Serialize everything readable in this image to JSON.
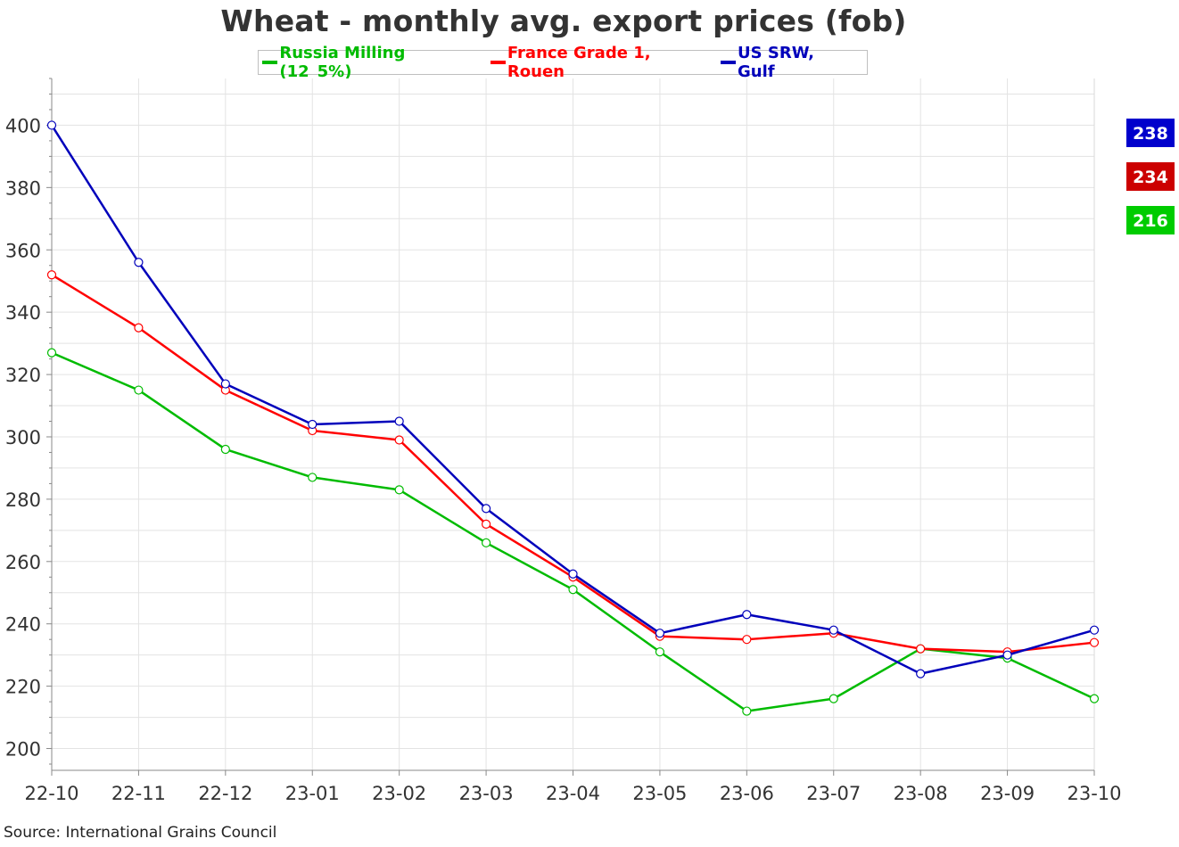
{
  "chart_data": {
    "type": "line",
    "title": "Wheat - monthly avg. export prices (fob)",
    "xlabel": "",
    "ylabel": "",
    "categories": [
      "22-10",
      "22-11",
      "22-12",
      "23-01",
      "23-02",
      "23-03",
      "23-04",
      "23-05",
      "23-06",
      "23-07",
      "23-08",
      "23-09",
      "23-10"
    ],
    "ylim": [
      193,
      415
    ],
    "yticks": [
      200,
      220,
      240,
      260,
      280,
      300,
      320,
      340,
      360,
      380,
      400
    ],
    "grid": true,
    "legend_position": "top-center",
    "series": [
      {
        "name": "Russia Milling (12_5%)",
        "color": "#00bb00",
        "values": [
          327,
          315,
          296,
          287,
          283,
          266,
          251,
          231,
          212,
          216,
          232,
          229,
          216
        ],
        "last_label": "216"
      },
      {
        "name": "France Grade 1, Rouen",
        "color": "#ff0000",
        "values": [
          352,
          335,
          315,
          302,
          299,
          272,
          255,
          236,
          235,
          237,
          232,
          231,
          234
        ],
        "last_label": "234"
      },
      {
        "name": "US SRW, Gulf",
        "color": "#0000bb",
        "values": [
          400,
          356,
          317,
          304,
          305,
          277,
          256,
          237,
          243,
          238,
          224,
          230,
          238
        ],
        "last_label": "238"
      }
    ],
    "badge_colors": {
      "US SRW, Gulf": "#0000cc",
      "France Grade 1, Rouen": "#cc0000",
      "Russia Milling (12_5%)": "#00cc00"
    }
  },
  "source_note": "Source: International Grains Council"
}
